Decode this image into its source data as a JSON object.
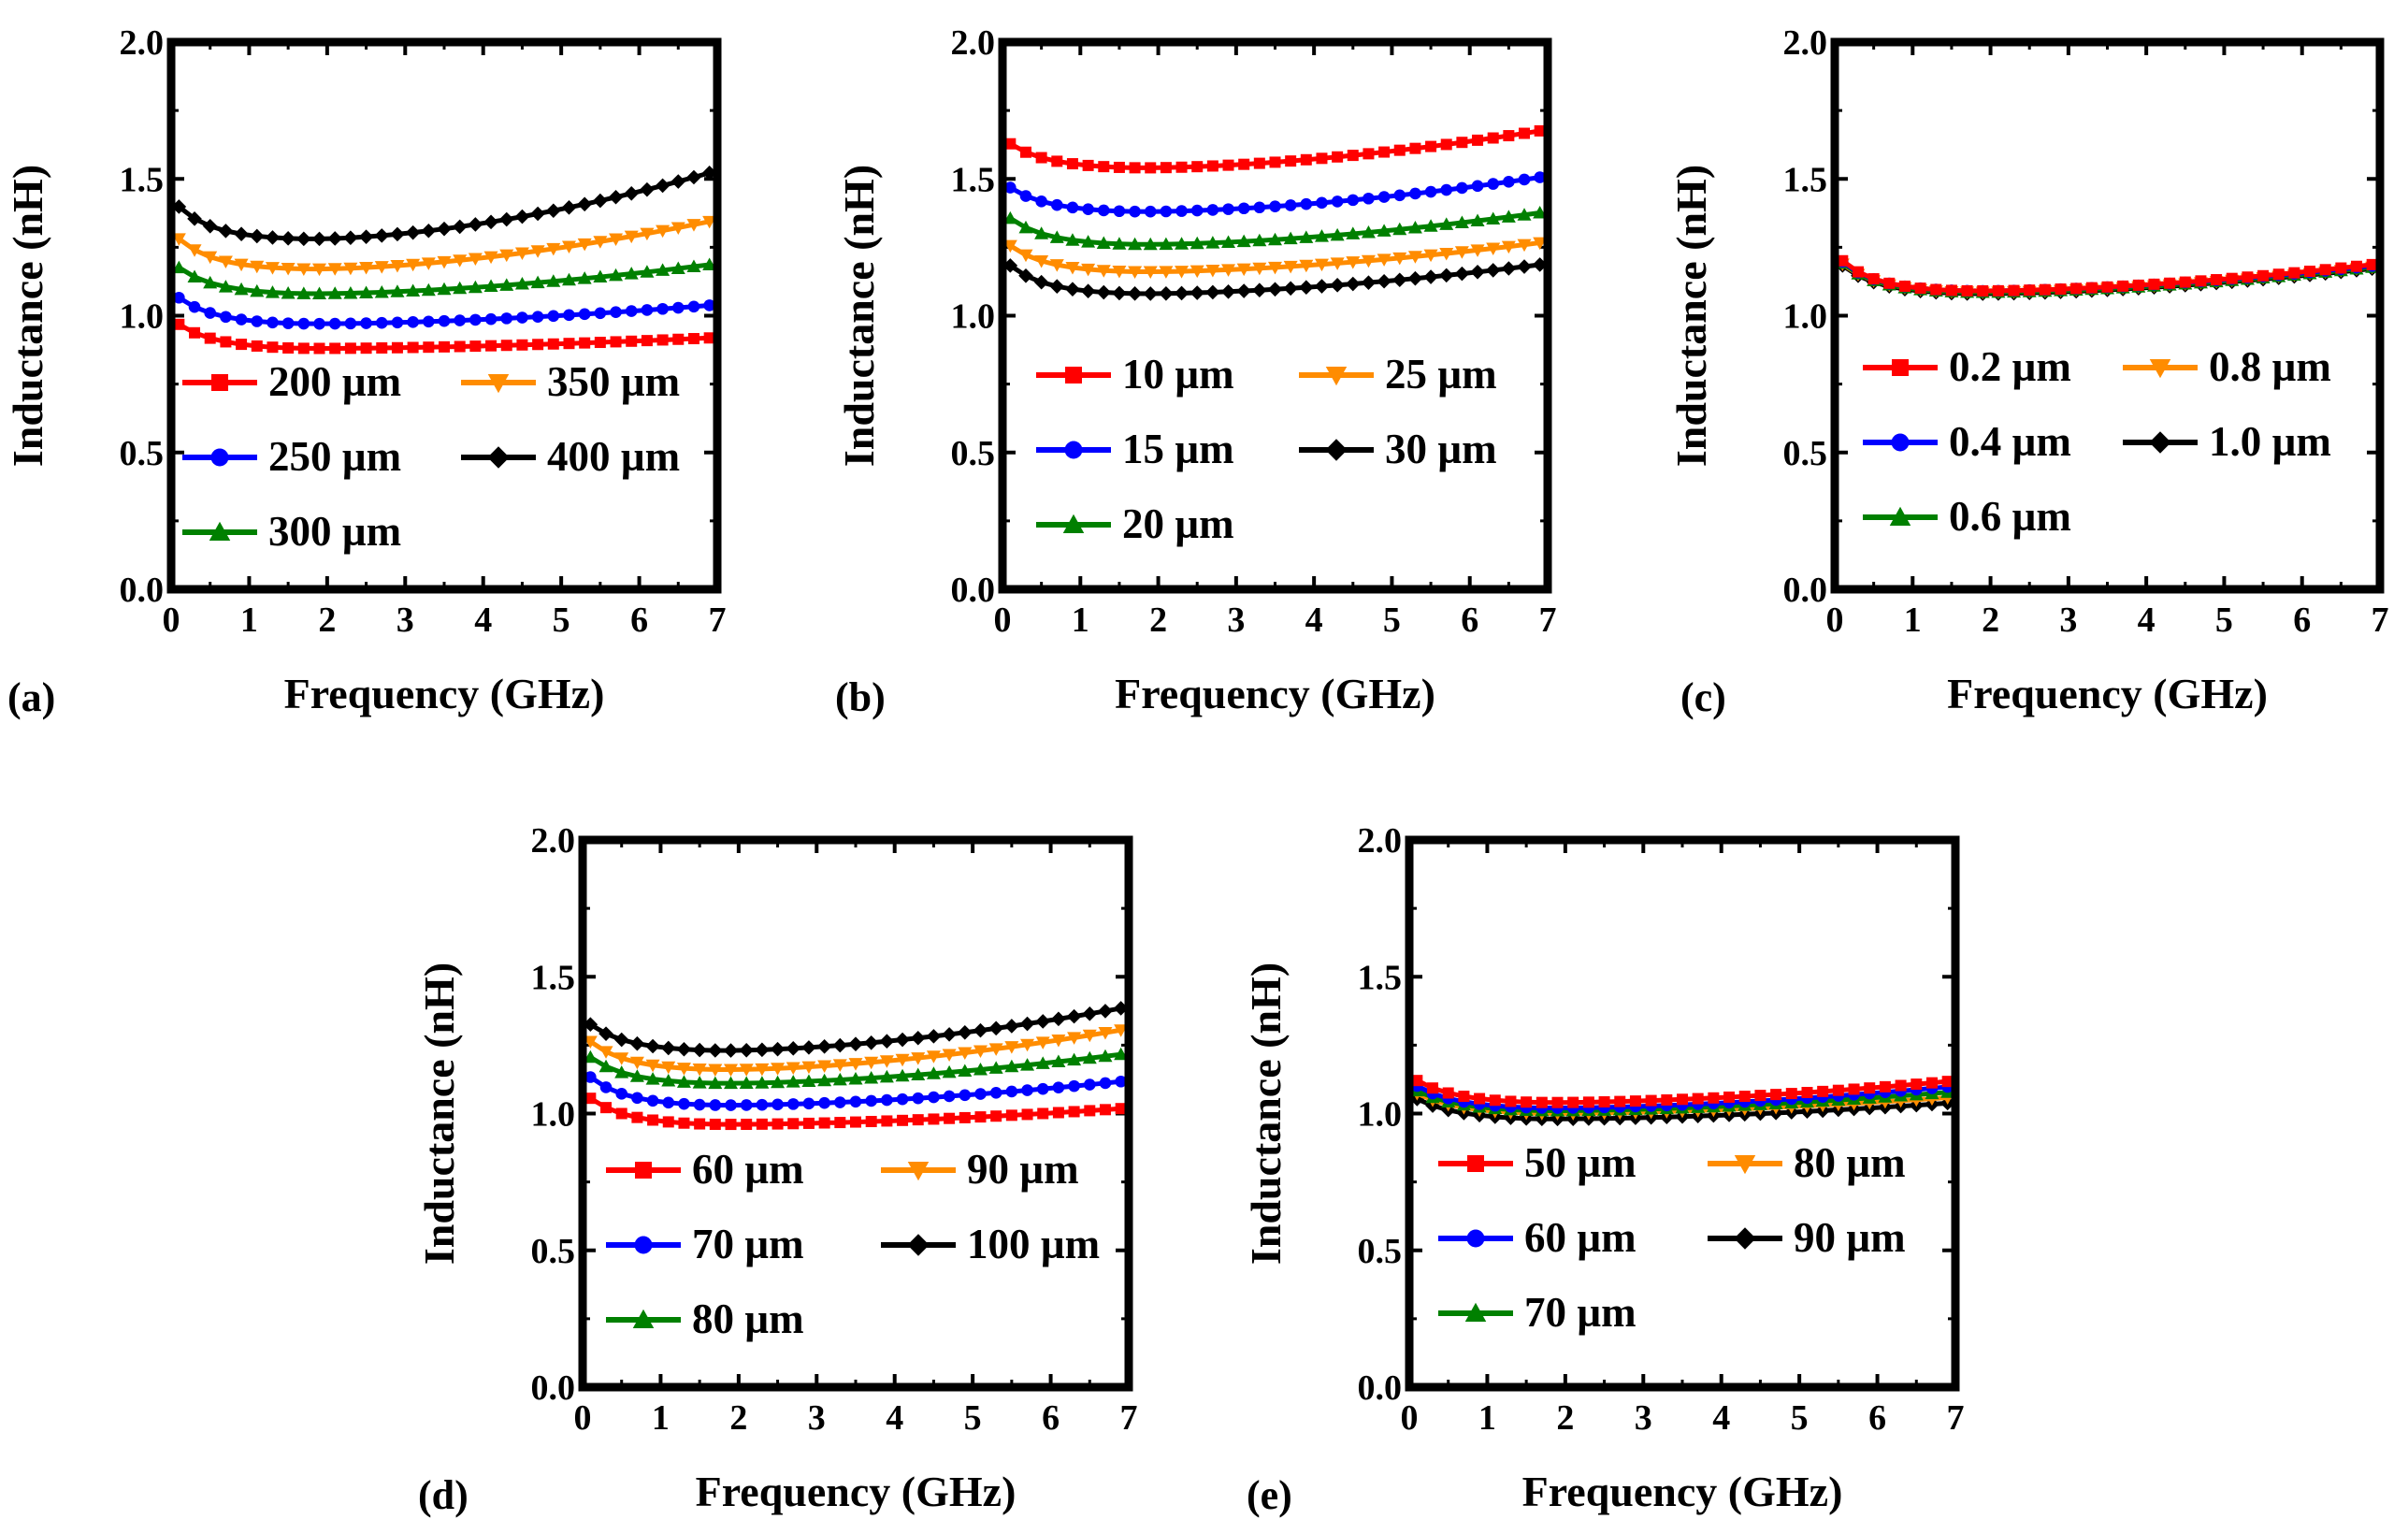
{
  "chart_data": [
    {
      "panel": "(a)",
      "type": "line",
      "xlabel": "Frequency (GHz)",
      "ylabel": "Inductance (nH)",
      "xlim": [
        0,
        7
      ],
      "ylim": [
        0.0,
        2.0
      ],
      "xticks": [
        "0",
        "1",
        "2",
        "3",
        "4",
        "5",
        "6",
        "7"
      ],
      "yticks": [
        "0.0",
        "0.5",
        "1.0",
        "1.5",
        "2.0"
      ],
      "series": [
        {
          "name": "200 µm",
          "color": "#ff0000",
          "marker": "square",
          "params": {
            "L0": 0.99,
            "Lmin": 0.88,
            "Lend": 0.92
          }
        },
        {
          "name": "250 µm",
          "color": "#0000ff",
          "marker": "circle",
          "params": {
            "L0": 1.09,
            "Lmin": 0.97,
            "Lend": 1.04
          }
        },
        {
          "name": "300 µm",
          "color": "#008000",
          "marker": "triangle-up",
          "params": {
            "L0": 1.2,
            "Lmin": 1.08,
            "Lend": 1.19
          }
        },
        {
          "name": "350 µm",
          "color": "#ff8c00",
          "marker": "triangle-down",
          "params": {
            "L0": 1.31,
            "Lmin": 1.17,
            "Lend": 1.35
          }
        },
        {
          "name": "400 µm",
          "color": "#000000",
          "marker": "diamond",
          "params": {
            "L0": 1.43,
            "Lmin": 1.28,
            "Lend": 1.53
          }
        }
      ]
    },
    {
      "panel": "(b)",
      "type": "line",
      "xlabel": "Frequency (GHz)",
      "ylabel": "Inductance (nH)",
      "xlim": [
        0,
        7
      ],
      "ylim": [
        0.0,
        2.0
      ],
      "xticks": [
        "0",
        "1",
        "2",
        "3",
        "4",
        "5",
        "6",
        "7"
      ],
      "yticks": [
        "0.0",
        "0.5",
        "1.0",
        "1.5",
        "2.0"
      ],
      "series": [
        {
          "name": "10 µm",
          "color": "#ff0000",
          "marker": "square",
          "params": {
            "L0": 1.65,
            "Lmin": 1.54,
            "Lend": 1.68
          }
        },
        {
          "name": "15 µm",
          "color": "#0000ff",
          "marker": "circle",
          "params": {
            "L0": 1.49,
            "Lmin": 1.38,
            "Lend": 1.51
          }
        },
        {
          "name": "20 µm",
          "color": "#008000",
          "marker": "triangle-up",
          "params": {
            "L0": 1.38,
            "Lmin": 1.26,
            "Lend": 1.38
          }
        },
        {
          "name": "25 µm",
          "color": "#ff8c00",
          "marker": "triangle-down",
          "params": {
            "L0": 1.28,
            "Lmin": 1.16,
            "Lend": 1.27
          }
        },
        {
          "name": "30 µm",
          "color": "#000000",
          "marker": "diamond",
          "params": {
            "L0": 1.21,
            "Lmin": 1.08,
            "Lend": 1.19
          }
        }
      ]
    },
    {
      "panel": "(c)",
      "type": "line",
      "xlabel": "Frequency (GHz)",
      "ylabel": "Inductance (nH)",
      "xlim": [
        0,
        7
      ],
      "ylim": [
        0.0,
        2.0
      ],
      "xticks": [
        "0",
        "1",
        "2",
        "3",
        "4",
        "5",
        "6",
        "7"
      ],
      "yticks": [
        "0.0",
        "0.5",
        "1.0",
        "1.5",
        "2.0"
      ],
      "series": [
        {
          "name": "0.2 µm",
          "color": "#ff0000",
          "marker": "square",
          "params": {
            "L0": 1.23,
            "Lmin": 1.09,
            "Lend": 1.19
          }
        },
        {
          "name": "0.4 µm",
          "color": "#0000ff",
          "marker": "circle",
          "params": {
            "L0": 1.225,
            "Lmin": 1.09,
            "Lend": 1.185
          }
        },
        {
          "name": "0.6 µm",
          "color": "#008000",
          "marker": "triangle-up",
          "params": {
            "L0": 1.22,
            "Lmin": 1.085,
            "Lend": 1.18
          }
        },
        {
          "name": "0.8 µm",
          "color": "#ff8c00",
          "marker": "triangle-down",
          "params": {
            "L0": 1.215,
            "Lmin": 1.085,
            "Lend": 1.18
          }
        },
        {
          "name": "1.0 µm",
          "color": "#000000",
          "marker": "diamond",
          "params": {
            "L0": 1.21,
            "Lmin": 1.08,
            "Lend": 1.175
          }
        }
      ]
    },
    {
      "panel": "(d)",
      "type": "line",
      "xlabel": "Frequency (GHz)",
      "ylabel": "Inductance (nH)",
      "xlim": [
        0,
        7
      ],
      "ylim": [
        0.0,
        2.0
      ],
      "xticks": [
        "0",
        "1",
        "2",
        "3",
        "4",
        "5",
        "6",
        "7"
      ],
      "yticks": [
        "0.0",
        "0.5",
        "1.0",
        "1.5",
        "2.0"
      ],
      "series": [
        {
          "name": "60 µm",
          "color": "#ff0000",
          "marker": "square",
          "params": {
            "L0": 1.08,
            "Lmin": 0.96,
            "Lend": 1.02
          }
        },
        {
          "name": "70 µm",
          "color": "#0000ff",
          "marker": "circle",
          "params": {
            "L0": 1.16,
            "Lmin": 1.03,
            "Lend": 1.12
          }
        },
        {
          "name": "80 µm",
          "color": "#008000",
          "marker": "triangle-up",
          "params": {
            "L0": 1.23,
            "Lmin": 1.11,
            "Lend": 1.22
          }
        },
        {
          "name": "90 µm",
          "color": "#ff8c00",
          "marker": "triangle-down",
          "params": {
            "L0": 1.29,
            "Lmin": 1.16,
            "Lend": 1.31
          }
        },
        {
          "name": "100 µm",
          "color": "#000000",
          "marker": "diamond",
          "params": {
            "L0": 1.35,
            "Lmin": 1.23,
            "Lend": 1.39
          }
        }
      ]
    },
    {
      "panel": "(e)",
      "type": "line",
      "xlabel": "Frequency (GHz)",
      "ylabel": "Inductance (nH)",
      "xlim": [
        0,
        7
      ],
      "ylim": [
        0.0,
        2.0
      ],
      "xticks": [
        "0",
        "1",
        "2",
        "3",
        "4",
        "5",
        "6",
        "7"
      ],
      "yticks": [
        "0.0",
        "0.5",
        "1.0",
        "1.5",
        "2.0"
      ],
      "series": [
        {
          "name": "50 µm",
          "color": "#ff0000",
          "marker": "square",
          "params": {
            "L0": 1.14,
            "Lmin": 1.04,
            "Lend": 1.12
          }
        },
        {
          "name": "60 µm",
          "color": "#0000ff",
          "marker": "circle",
          "params": {
            "L0": 1.12,
            "Lmin": 1.02,
            "Lend": 1.1
          }
        },
        {
          "name": "70 µm",
          "color": "#008000",
          "marker": "triangle-up",
          "params": {
            "L0": 1.1,
            "Lmin": 1.01,
            "Lend": 1.08
          }
        },
        {
          "name": "80 µm",
          "color": "#ff8c00",
          "marker": "triangle-down",
          "params": {
            "L0": 1.09,
            "Lmin": 1.0,
            "Lend": 1.06
          }
        },
        {
          "name": "90 µm",
          "color": "#000000",
          "marker": "diamond",
          "params": {
            "L0": 1.07,
            "Lmin": 0.98,
            "Lend": 1.04
          }
        }
      ]
    }
  ]
}
